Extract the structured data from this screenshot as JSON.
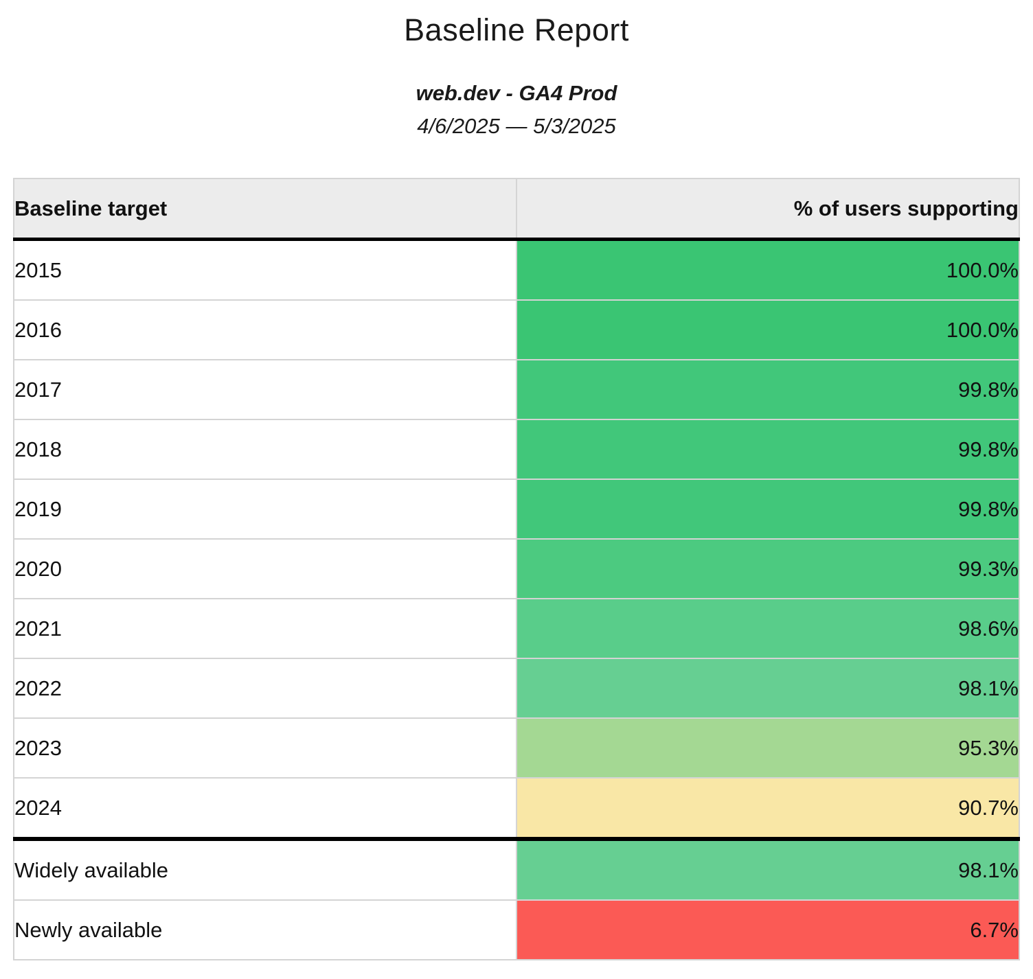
{
  "header": {
    "title": "Baseline Report",
    "source": "web.dev - GA4 Prod",
    "date_range": "4/6/2025 — 5/3/2025"
  },
  "table": {
    "columns": [
      "Baseline target",
      "% of users supporting"
    ],
    "rows": [
      {
        "label": "2015",
        "value": "100.0%",
        "color": "#3ac573"
      },
      {
        "label": "2016",
        "value": "100.0%",
        "color": "#3ac573"
      },
      {
        "label": "2017",
        "value": "99.8%",
        "color": "#41c77a"
      },
      {
        "label": "2018",
        "value": "99.8%",
        "color": "#41c77a"
      },
      {
        "label": "2019",
        "value": "99.8%",
        "color": "#41c77a"
      },
      {
        "label": "2020",
        "value": "99.3%",
        "color": "#4cca80"
      },
      {
        "label": "2021",
        "value": "98.6%",
        "color": "#59cd8a"
      },
      {
        "label": "2022",
        "value": "98.1%",
        "color": "#66cf92"
      },
      {
        "label": "2023",
        "value": "95.3%",
        "color": "#a4d893"
      },
      {
        "label": "2024",
        "value": "90.7%",
        "color": "#f9e7a6"
      },
      {
        "label": "Widely available",
        "value": "98.1%",
        "color": "#66cf92",
        "section_start": true
      },
      {
        "label": "Newly available",
        "value": "6.7%",
        "color": "#fb5a55"
      }
    ]
  },
  "colors": {
    "header_background": "#ececec",
    "section_divider": "#000000",
    "row_border": "#d4d4d4",
    "green_high": "#3ac573",
    "yellow_mid": "#f9e7a6",
    "red_low": "#fb5a55"
  }
}
